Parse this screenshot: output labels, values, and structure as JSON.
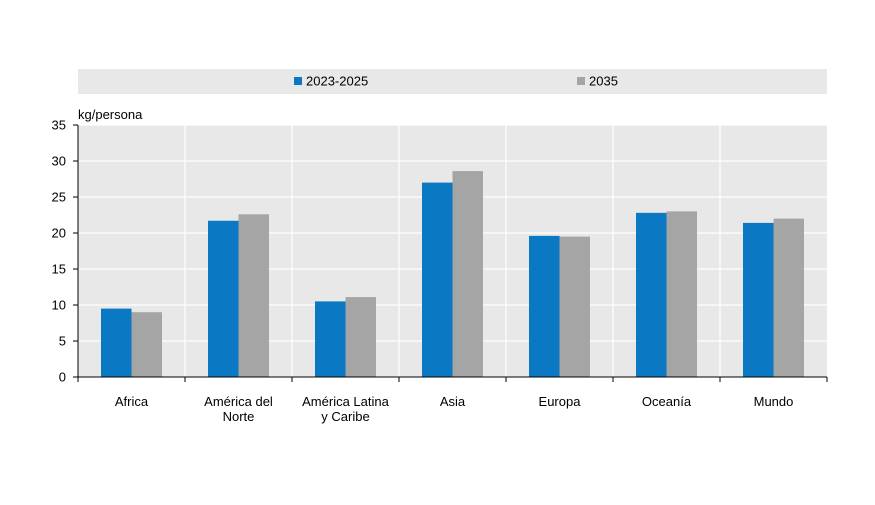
{
  "chart_data": {
    "type": "bar",
    "ylabel": "kg/persona",
    "ylim": [
      0,
      35
    ],
    "yticks": [
      0,
      5,
      10,
      15,
      20,
      25,
      30,
      35
    ],
    "grid": true,
    "legend_position": "top",
    "categories": [
      [
        "Africa"
      ],
      [
        "América del",
        "Norte"
      ],
      [
        "América Latina",
        "y Caribe"
      ],
      [
        "Asia"
      ],
      [
        "Europa"
      ],
      [
        "Oceanía"
      ],
      [
        "Mundo"
      ]
    ],
    "series": [
      {
        "name": "2023-2025",
        "color": "#0a78c2",
        "values": [
          9.5,
          21.7,
          10.5,
          27.0,
          19.6,
          22.8,
          21.4
        ]
      },
      {
        "name": "2035",
        "color": "#a5a5a5",
        "values": [
          9.0,
          22.6,
          11.1,
          28.6,
          19.5,
          23.0,
          22.0
        ]
      }
    ]
  }
}
